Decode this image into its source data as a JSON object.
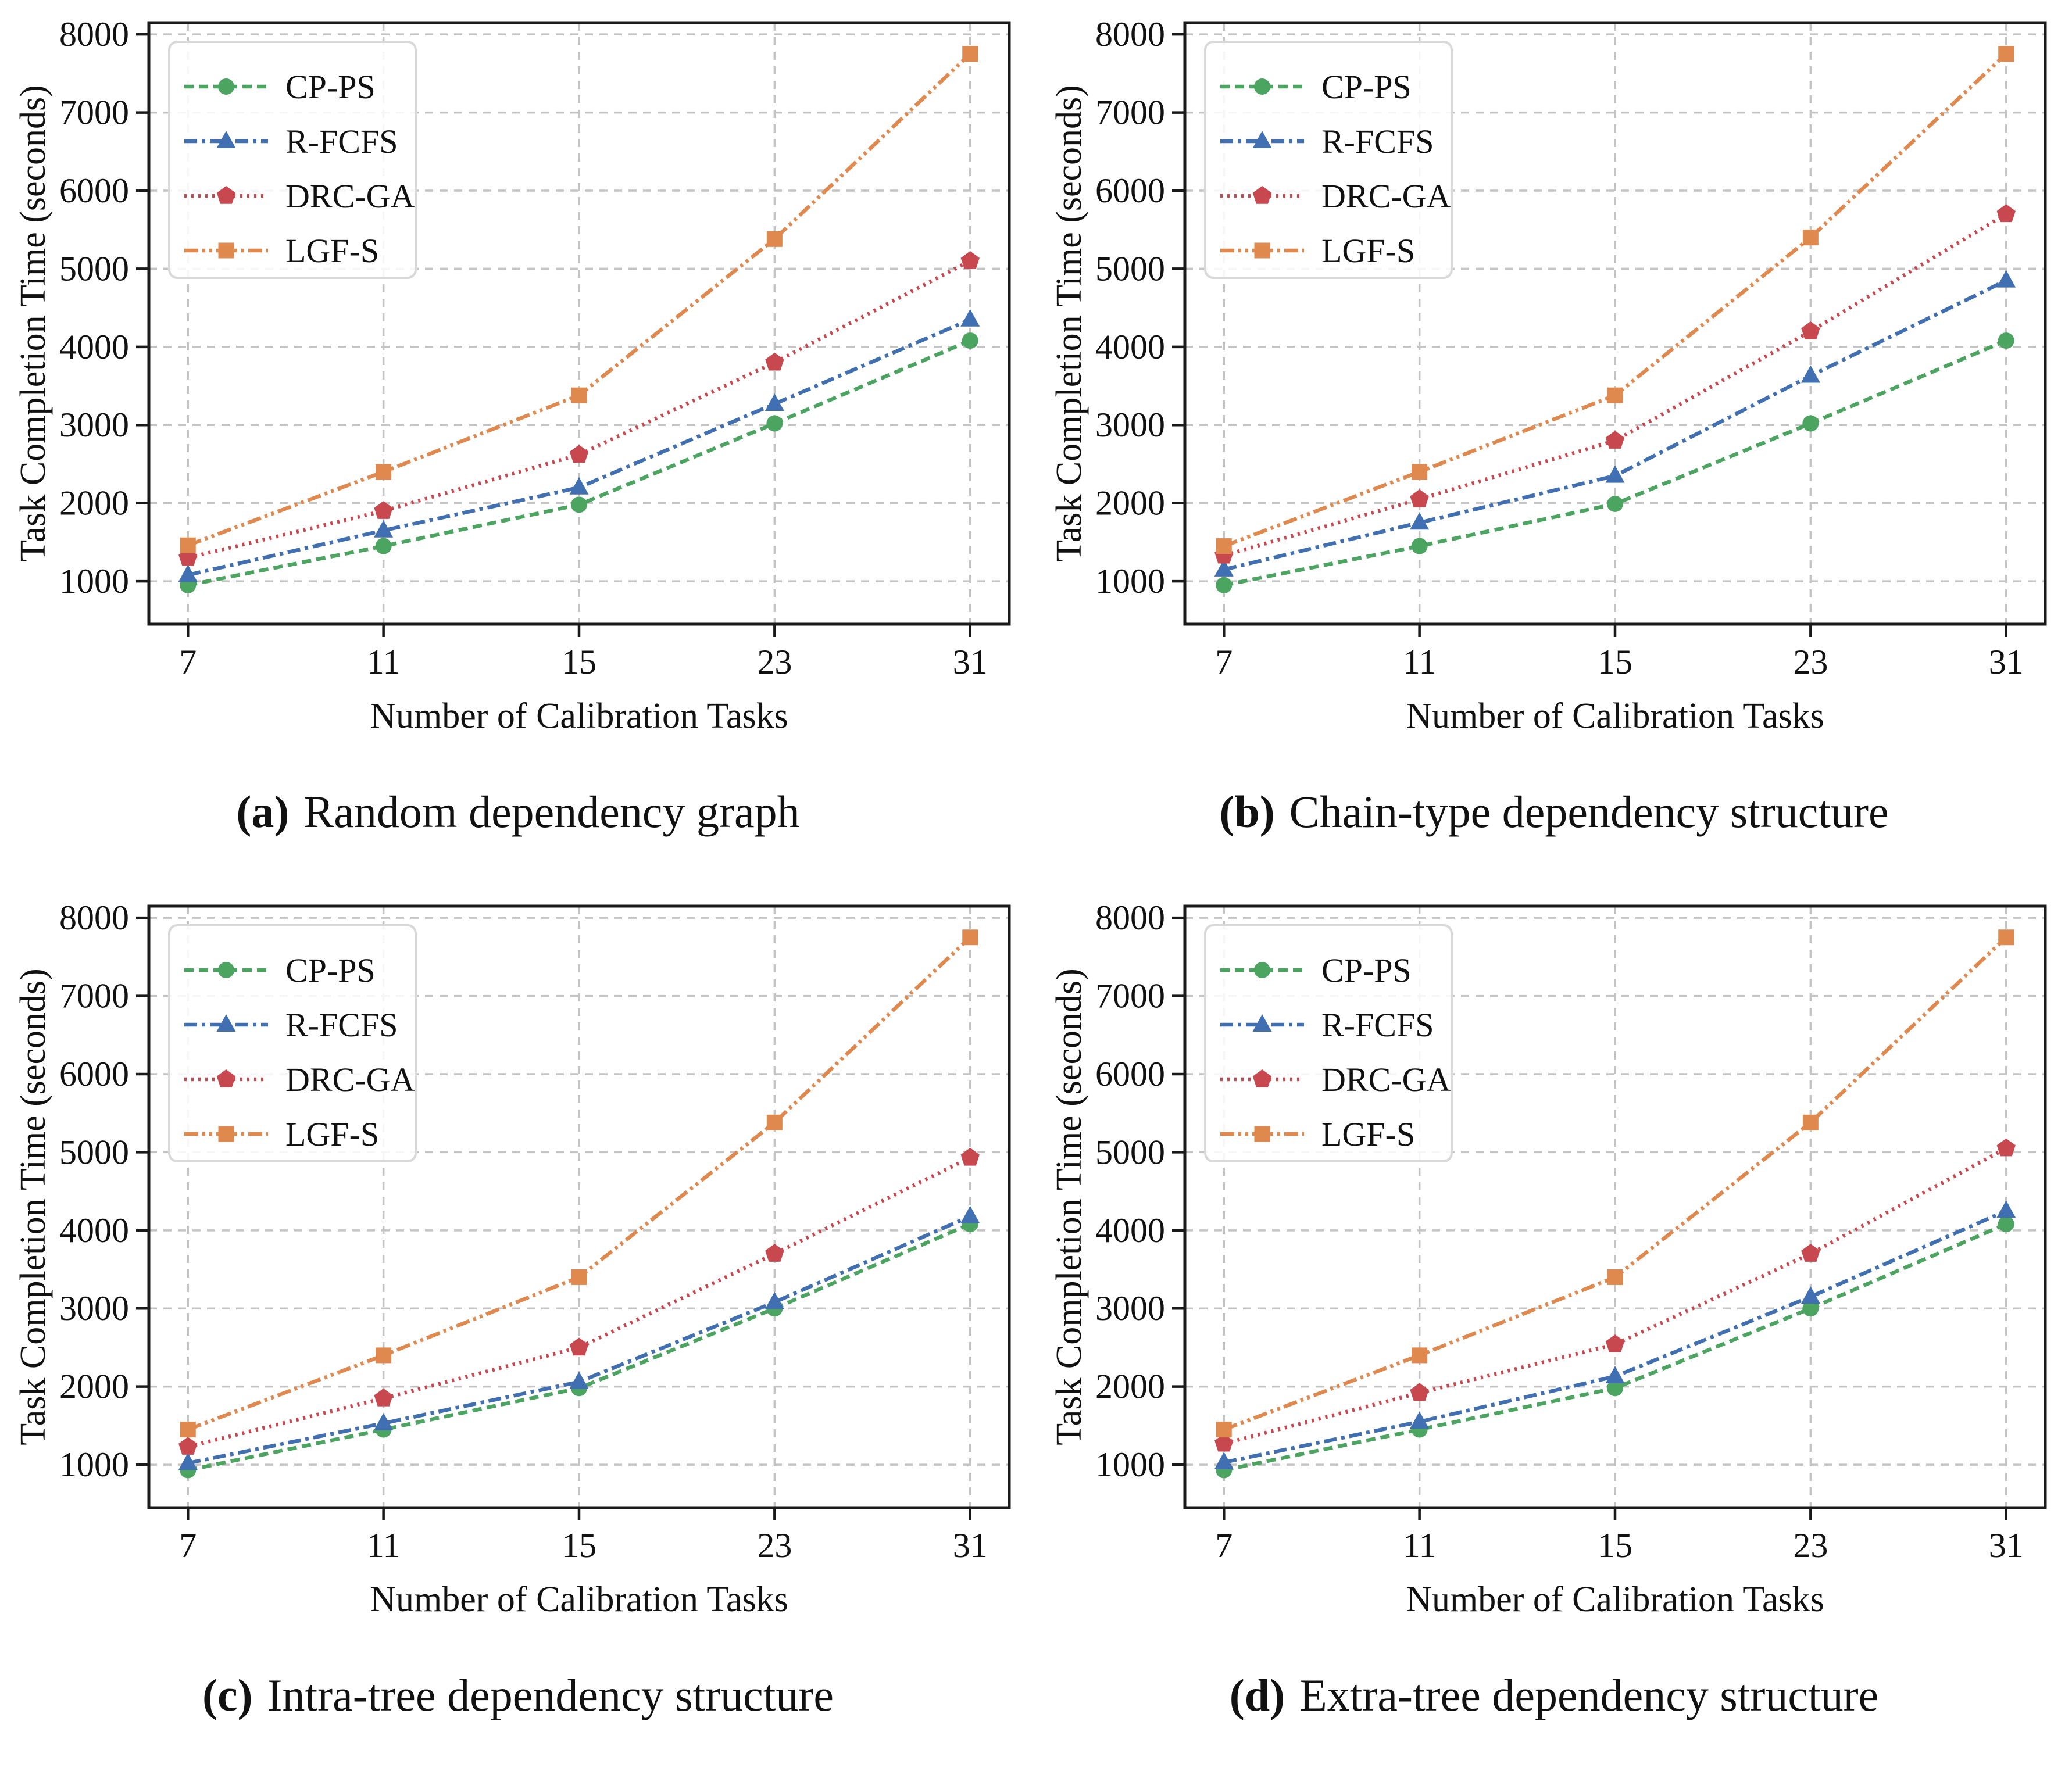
{
  "figure": {
    "xlabel": "Number of Calibration Tasks",
    "ylabel": "Task Completion Time (seconds)",
    "x_tick_labels": [
      "7",
      "11",
      "15",
      "23",
      "31"
    ],
    "y_tick_labels": [
      "1000",
      "2000",
      "3000",
      "4000",
      "5000",
      "6000",
      "7000",
      "8000"
    ],
    "colors": {
      "green": "#4ba45f",
      "blue": "#4170b2",
      "red": "#c8484f",
      "orange": "#e0894f",
      "grid": "#c4c4c4",
      "spine": "#1a1a1a",
      "legend_border": "#d9d9d9",
      "text": "#111111"
    },
    "legend_position": "upper left"
  },
  "styles": {
    "CP-PS": {
      "color": "#4ba45f",
      "marker": "circle",
      "linestyle": "dashed"
    },
    "R-FCFS": {
      "color": "#4170b2",
      "marker": "triangle",
      "linestyle": "dashdot"
    },
    "DRC-GA": {
      "color": "#c8484f",
      "marker": "pentagon",
      "linestyle": "dotted"
    },
    "LGF-S": {
      "color": "#e0894f",
      "marker": "square",
      "linestyle": "dashdotdot"
    }
  },
  "chart_data": [
    {
      "type": "line",
      "caption_label": "(a)",
      "caption_text": "Random dependency graph",
      "xlabel": "Number of Calibration Tasks",
      "ylabel": "Task Completion Time (seconds)",
      "categories": [
        7,
        11,
        15,
        23,
        31
      ],
      "ylim": [
        450,
        8150
      ],
      "yticks": [
        1000,
        2000,
        3000,
        4000,
        5000,
        6000,
        7000,
        8000
      ],
      "grid": true,
      "legend": [
        "CP-PS",
        "R-FCFS",
        "DRC-GA",
        "LGF-S"
      ],
      "series": [
        {
          "name": "CP-PS",
          "values": [
            950,
            1450,
            1980,
            3020,
            4080
          ]
        },
        {
          "name": "R-FCFS",
          "values": [
            1080,
            1650,
            2200,
            3270,
            4350
          ]
        },
        {
          "name": "DRC-GA",
          "values": [
            1300,
            1900,
            2620,
            3800,
            5100
          ]
        },
        {
          "name": "LGF-S",
          "values": [
            1460,
            2400,
            3380,
            5380,
            7750
          ]
        }
      ]
    },
    {
      "type": "line",
      "caption_label": "(b)",
      "caption_text": "Chain-type dependency structure",
      "xlabel": "Number of Calibration Tasks",
      "ylabel": "Task Completion Time (seconds)",
      "categories": [
        7,
        11,
        15,
        23,
        31
      ],
      "ylim": [
        450,
        8150
      ],
      "yticks": [
        1000,
        2000,
        3000,
        4000,
        5000,
        6000,
        7000,
        8000
      ],
      "grid": true,
      "legend": [
        "CP-PS",
        "R-FCFS",
        "DRC-GA",
        "LGF-S"
      ],
      "series": [
        {
          "name": "CP-PS",
          "values": [
            950,
            1450,
            1990,
            3020,
            4080
          ]
        },
        {
          "name": "R-FCFS",
          "values": [
            1150,
            1750,
            2350,
            3630,
            4850
          ]
        },
        {
          "name": "DRC-GA",
          "values": [
            1330,
            2050,
            2800,
            4200,
            5700
          ]
        },
        {
          "name": "LGF-S",
          "values": [
            1450,
            2400,
            3380,
            5400,
            7750
          ]
        }
      ]
    },
    {
      "type": "line",
      "caption_label": "(c)",
      "caption_text": "Intra-tree dependency structure",
      "xlabel": "Number of Calibration Tasks",
      "ylabel": "Task Completion Time (seconds)",
      "categories": [
        7,
        11,
        15,
        23,
        31
      ],
      "ylim": [
        450,
        8150
      ],
      "yticks": [
        1000,
        2000,
        3000,
        4000,
        5000,
        6000,
        7000,
        8000
      ],
      "grid": true,
      "legend": [
        "CP-PS",
        "R-FCFS",
        "DRC-GA",
        "LGF-S"
      ],
      "series": [
        {
          "name": "CP-PS",
          "values": [
            930,
            1450,
            1980,
            3000,
            4080
          ]
        },
        {
          "name": "R-FCFS",
          "values": [
            1020,
            1530,
            2060,
            3080,
            4180
          ]
        },
        {
          "name": "DRC-GA",
          "values": [
            1230,
            1850,
            2500,
            3700,
            4930
          ]
        },
        {
          "name": "LGF-S",
          "values": [
            1450,
            2400,
            3400,
            5380,
            7750
          ]
        }
      ]
    },
    {
      "type": "line",
      "caption_label": "(d)",
      "caption_text": "Extra-tree dependency structure",
      "xlabel": "Number of Calibration Tasks",
      "ylabel": "Task Completion Time (seconds)",
      "categories": [
        7,
        11,
        15,
        23,
        31
      ],
      "ylim": [
        450,
        8150
      ],
      "yticks": [
        1000,
        2000,
        3000,
        4000,
        5000,
        6000,
        7000,
        8000
      ],
      "grid": true,
      "legend": [
        "CP-PS",
        "R-FCFS",
        "DRC-GA",
        "LGF-S"
      ],
      "series": [
        {
          "name": "CP-PS",
          "values": [
            930,
            1450,
            1980,
            3000,
            4080
          ]
        },
        {
          "name": "R-FCFS",
          "values": [
            1030,
            1550,
            2130,
            3150,
            4250
          ]
        },
        {
          "name": "DRC-GA",
          "values": [
            1270,
            1920,
            2540,
            3700,
            5050
          ]
        },
        {
          "name": "LGF-S",
          "values": [
            1450,
            2400,
            3400,
            5380,
            7750
          ]
        }
      ]
    }
  ]
}
